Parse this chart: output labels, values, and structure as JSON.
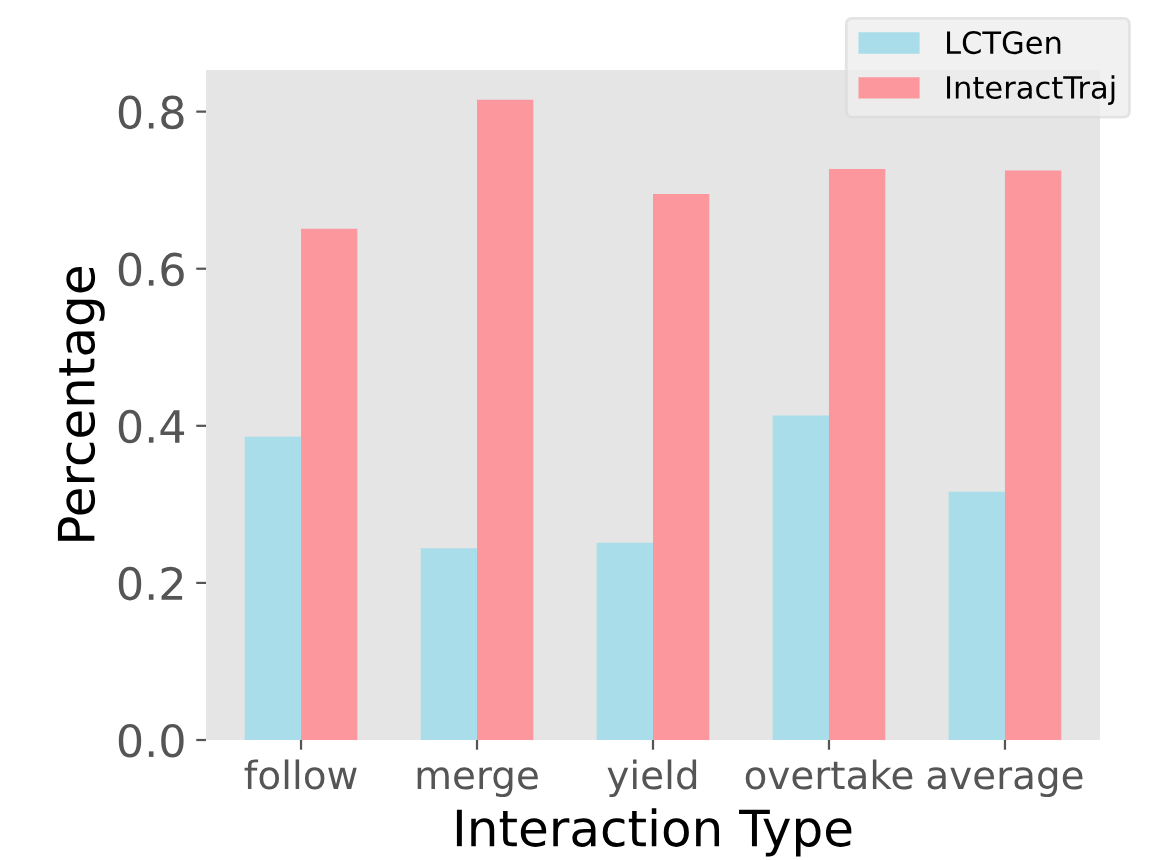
{
  "chart_data": {
    "type": "bar",
    "xlabel": "Interaction Type",
    "ylabel": "Percentage",
    "categories": [
      "follow",
      "merge",
      "yield",
      "overtake",
      "average"
    ],
    "series": [
      {
        "name": "LCTGen",
        "color": "#a8dde9",
        "values": [
          0.386,
          0.244,
          0.251,
          0.413,
          0.316
        ]
      },
      {
        "name": "InteractTraj",
        "color": "#fc979e",
        "values": [
          0.651,
          0.815,
          0.695,
          0.727,
          0.725
        ]
      }
    ],
    "ylim": [
      0,
      0.853
    ],
    "yticks": [
      {
        "value": 0,
        "label": "0.0"
      },
      0.2,
      0.4,
      0.6,
      0.8
    ],
    "grid": false,
    "legend": "top right"
  }
}
